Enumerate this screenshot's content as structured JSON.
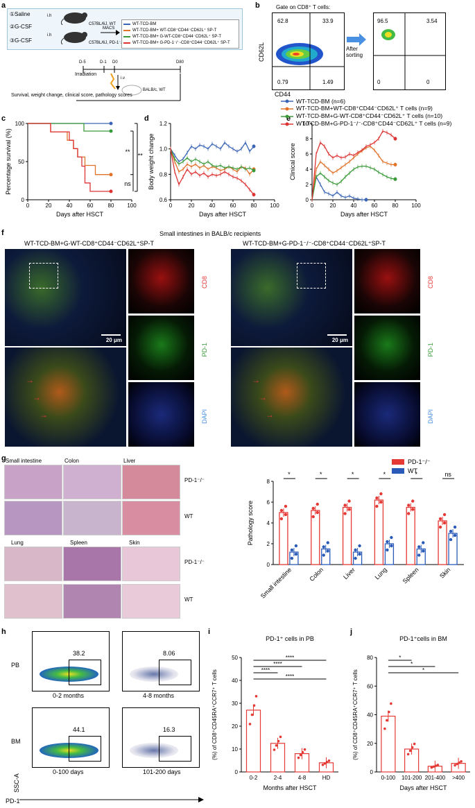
{
  "panel_labels": {
    "a": "a",
    "b": "b",
    "c": "c",
    "d": "d",
    "e": "e",
    "f": "f",
    "g": "g",
    "h": "h",
    "i": "i",
    "j": "j"
  },
  "a": {
    "groups": [
      "①Saline",
      "②G-CSF",
      "③G-CSF"
    ],
    "injection": "i.h",
    "mouse1": "C57BL/6J, WT",
    "mouse2": "C57BL/6J, PD-1⁻/⁻",
    "macs": "MACS",
    "legend": [
      "WT-TCD-BM",
      "WT-TCD-BM+ WT-CD8⁺CD44⁻CD62L⁺ SP-T",
      "WT-TCD-BM+ G-WT-CD8⁺CD44⁻CD62L⁺ SP-T",
      "WT-TCD-BM+ G-PD-1⁻/⁻-CD8⁺CD44⁻CD62L⁺ SP-T"
    ],
    "legend_colors": [
      "#3b66b6",
      "#e0722a",
      "#3a9a3a",
      "#d33"
    ],
    "timeline": [
      "D-5",
      "D-1",
      "D0",
      "D80"
    ],
    "irradiation": "Irradiation",
    "iv": "i.v",
    "recipient": "BALB/c, WT",
    "outcomes": "Survival, weight change, clinical score, pathology scores"
  },
  "b": {
    "title": "Gate on CD8⁺ T cells:",
    "ylabel": "CD62L",
    "xlabel": "CD44",
    "before": {
      "q1": "62.8",
      "q2": "33.9",
      "q3": "0.79",
      "q4": "1.49"
    },
    "after": {
      "q1": "96.5",
      "q2": "3.54",
      "q3": "0",
      "q4": "0"
    },
    "arrow_label": "After sorting"
  },
  "legend_main": {
    "entries": [
      "WT-TCD-BM (n=6)",
      "WT-TCD-BM+WT-CD8⁺CD44⁻CD62L⁺ T cells (n=9)",
      "WT-TCD-BM+G-WT-CD8⁺CD44⁻CD62L⁺ T cells (n=10)",
      "WT-TCD-BM+G-PD-1⁻/⁻-CD8⁺CD44⁻CD62L⁺ T cells (n=9)"
    ],
    "colors": [
      "#3b66b6",
      "#e0722a",
      "#3a9a3a",
      "#d33"
    ]
  },
  "chart_data": [
    {
      "type": "line",
      "panel": "c",
      "xlabel": "Days after HSCT",
      "ylabel": "Percentage survival (%)",
      "xlim": [
        0,
        100
      ],
      "ylim": [
        0,
        100
      ],
      "xticks": [
        0,
        20,
        40,
        60,
        80,
        100
      ],
      "yticks": [
        0,
        50,
        100
      ],
      "annotations": [
        "**",
        "***",
        "ns"
      ],
      "series": [
        {
          "color": "#3b66b6",
          "x": [
            0,
            80
          ],
          "y": [
            100,
            100
          ]
        },
        {
          "color": "#3a9a3a",
          "x": [
            0,
            54,
            54,
            80
          ],
          "y": [
            100,
            100,
            90,
            90
          ]
        },
        {
          "color": "#e0722a",
          "x": [
            0,
            22,
            22,
            38,
            38,
            44,
            44,
            48,
            48,
            55,
            55,
            65,
            65,
            80
          ],
          "y": [
            100,
            100,
            89,
            89,
            78,
            78,
            67,
            67,
            56,
            56,
            45,
            45,
            33,
            33
          ]
        },
        {
          "color": "#d33",
          "x": [
            0,
            22,
            22,
            40,
            40,
            44,
            44,
            48,
            48,
            52,
            52,
            55,
            55,
            60,
            60,
            80
          ],
          "y": [
            100,
            100,
            89,
            89,
            78,
            78,
            67,
            67,
            56,
            56,
            44,
            44,
            22,
            22,
            11,
            11
          ]
        }
      ]
    },
    {
      "type": "line",
      "panel": "d",
      "xlabel": "Days after HSCT",
      "ylabel": "Body weight change",
      "xlim": [
        0,
        100
      ],
      "ylim": [
        0.6,
        1.2
      ],
      "xticks": [
        0,
        20,
        40,
        60,
        80,
        100
      ],
      "yticks": [
        0.6,
        0.8,
        1.0,
        1.2
      ],
      "series": [
        {
          "color": "#3b66b6",
          "x": [
            0,
            4,
            8,
            12,
            16,
            20,
            24,
            28,
            32,
            36,
            40,
            44,
            48,
            52,
            56,
            60,
            64,
            68,
            72,
            76,
            80
          ],
          "y": [
            1.0,
            0.95,
            0.9,
            0.92,
            0.97,
            1.02,
            1.0,
            1.03,
            1.02,
            1.0,
            1.04,
            1.02,
            1.0,
            1.05,
            1.02,
            1.0,
            0.98,
            1.0,
            1.05,
            0.98,
            1.02
          ]
        },
        {
          "color": "#e0722a",
          "x": [
            0,
            4,
            8,
            12,
            16,
            20,
            24,
            28,
            32,
            36,
            40,
            44,
            48,
            52,
            56,
            60,
            64,
            68,
            72,
            76,
            80
          ],
          "y": [
            1.0,
            0.9,
            0.82,
            0.84,
            0.88,
            0.86,
            0.88,
            0.85,
            0.87,
            0.84,
            0.86,
            0.85,
            0.83,
            0.84,
            0.86,
            0.84,
            0.82,
            0.86,
            0.85,
            0.8,
            0.84
          ]
        },
        {
          "color": "#3a9a3a",
          "x": [
            0,
            4,
            8,
            12,
            16,
            20,
            24,
            28,
            32,
            36,
            40,
            44,
            48,
            52,
            56,
            60,
            64,
            68,
            72,
            76,
            80
          ],
          "y": [
            1.0,
            0.92,
            0.88,
            0.9,
            0.93,
            0.9,
            0.92,
            0.9,
            0.88,
            0.9,
            0.87,
            0.86,
            0.87,
            0.85,
            0.86,
            0.85,
            0.84,
            0.86,
            0.84,
            0.85,
            0.83
          ]
        },
        {
          "color": "#d33",
          "x": [
            0,
            4,
            8,
            12,
            16,
            20,
            24,
            28,
            32,
            36,
            40,
            44,
            48,
            52,
            56,
            60,
            64,
            68,
            72,
            76,
            80
          ],
          "y": [
            1.0,
            0.82,
            0.72,
            0.78,
            0.84,
            0.8,
            0.82,
            0.79,
            0.81,
            0.78,
            0.8,
            0.79,
            0.8,
            0.82,
            0.8,
            0.78,
            0.77,
            0.75,
            0.72,
            0.68,
            0.64
          ]
        }
      ]
    },
    {
      "type": "line",
      "panel": "e",
      "xlabel": "Days after HSCT",
      "ylabel": "Clinical score",
      "xlim": [
        0,
        100
      ],
      "ylim": [
        0,
        10
      ],
      "xticks": [
        0,
        20,
        40,
        60,
        80,
        100
      ],
      "yticks": [
        0,
        2,
        4,
        6,
        8,
        10
      ],
      "series": [
        {
          "color": "#3b66b6",
          "x": [
            0,
            4,
            8,
            12,
            16,
            20,
            24,
            28,
            32,
            36,
            40,
            44,
            48,
            52
          ],
          "y": [
            0,
            3,
            2,
            1,
            0.8,
            0.5,
            1,
            0.5,
            0.3,
            0.5,
            0.2,
            0.1,
            0,
            0
          ]
        },
        {
          "color": "#e0722a",
          "x": [
            0,
            4,
            8,
            12,
            16,
            20,
            24,
            28,
            32,
            36,
            40,
            44,
            48,
            52,
            56,
            60,
            64,
            68,
            72,
            76,
            80
          ],
          "y": [
            0,
            4,
            5,
            4.5,
            4,
            3.5,
            3.8,
            4.2,
            4.6,
            5,
            5.5,
            6,
            6.4,
            6.8,
            7,
            6.5,
            5.8,
            5,
            4.8,
            4.6,
            4.6
          ]
        },
        {
          "color": "#3a9a3a",
          "x": [
            0,
            4,
            8,
            12,
            16,
            20,
            24,
            28,
            32,
            36,
            40,
            44,
            48,
            52,
            56,
            60,
            64,
            68,
            72,
            76,
            80
          ],
          "y": [
            0,
            3,
            3.5,
            3,
            2.5,
            2.2,
            2,
            2.4,
            3,
            3.5,
            4,
            4.3,
            4.4,
            4.4,
            4.2,
            4,
            3.6,
            3.3,
            3,
            2.8,
            2.7
          ]
        },
        {
          "color": "#d33",
          "x": [
            0,
            4,
            8,
            12,
            16,
            20,
            24,
            28,
            32,
            36,
            40,
            44,
            48,
            52,
            56,
            60,
            64,
            68,
            72,
            76,
            80
          ],
          "y": [
            0,
            6,
            7.5,
            7,
            6,
            5.5,
            5.8,
            5.5,
            5.6,
            6,
            5.8,
            6.2,
            6.5,
            7,
            7.2,
            7.5,
            8,
            9,
            8.8,
            8.5,
            8
          ]
        }
      ]
    },
    {
      "type": "bar",
      "panel": "g",
      "ylabel": "Pathology score",
      "ylim": [
        0,
        8
      ],
      "yticks": [
        0,
        2,
        4,
        6,
        8
      ],
      "categories": [
        "Small intestine",
        "Colon",
        "Liver",
        "Lung",
        "Spleen",
        "Skin"
      ],
      "significance": [
        "*",
        "*",
        "*",
        "*",
        "*",
        "ns"
      ],
      "series": [
        {
          "name": "PD-1⁻/⁻",
          "color": "#e53935",
          "values": [
            5.0,
            5.2,
            5.5,
            6.2,
            5.5,
            4.2
          ]
        },
        {
          "name": "WT",
          "color": "#2a5ab8",
          "values": [
            1.2,
            1.5,
            1.2,
            2.0,
            1.5,
            3.0
          ]
        }
      ]
    },
    {
      "type": "bar",
      "panel": "i",
      "title": "PD-1⁺ cells in PB",
      "xlabel": "Months after HSCT",
      "ylabel": "(%) of CD8⁺CD45RA⁺CCR7⁺ T cells",
      "ylim": [
        0,
        50
      ],
      "yticks": [
        0,
        10,
        20,
        30,
        40,
        50
      ],
      "categories": [
        "0-2",
        "2-4",
        "4-8",
        "HD"
      ],
      "values": [
        27,
        12.5,
        8,
        4
      ],
      "significance": [
        "****",
        "****",
        "****",
        "****"
      ]
    },
    {
      "type": "bar",
      "panel": "j",
      "title": "PD-1⁺cells in BM",
      "xlabel": "Days after HSCT",
      "ylabel": "(%) of CD8⁺CD45RA⁺CCR7⁺ T cells",
      "ylim": [
        0,
        80
      ],
      "yticks": [
        0,
        20,
        40,
        60,
        80
      ],
      "categories": [
        "0-100",
        "101-200",
        "201-400",
        ">400"
      ],
      "values": [
        39,
        16,
        4,
        6
      ],
      "significance": [
        "*",
        "*",
        "*"
      ]
    }
  ],
  "f": {
    "title": "Small intestines in BALB/c recipients",
    "left_title": "WT-TCD-BM+G-WT-CD8⁺CD44⁻CD62L⁺SP-T",
    "right_title": "WT-TCD-BM+G-PD-1⁻/⁻-CD8⁺CD44⁻CD62L⁺SP-T",
    "scale": "20 μm",
    "channels": [
      "CD8",
      "PD-1",
      "DAPI"
    ],
    "channel_colors": [
      "#e53935",
      "#3a9a3a",
      "#4a90e2"
    ]
  },
  "g_images": {
    "top_labels": [
      "Small intestine",
      "Colon",
      "Liver"
    ],
    "bottom_labels": [
      "Lung",
      "Spleen",
      "Skin"
    ],
    "row_labels": [
      "PD-1⁻/⁻",
      "WT",
      "PD-1⁻/⁻",
      "WT"
    ]
  },
  "h": {
    "row_labels": [
      "PB",
      "BM"
    ],
    "values": [
      "38.2",
      "8.06",
      "44.1",
      "16.3"
    ],
    "times": [
      "0-2 months",
      "4-8 months",
      "0-100 days",
      "101-200 days"
    ],
    "xlabel": "PD-1",
    "ylabel": "SSC-A"
  }
}
